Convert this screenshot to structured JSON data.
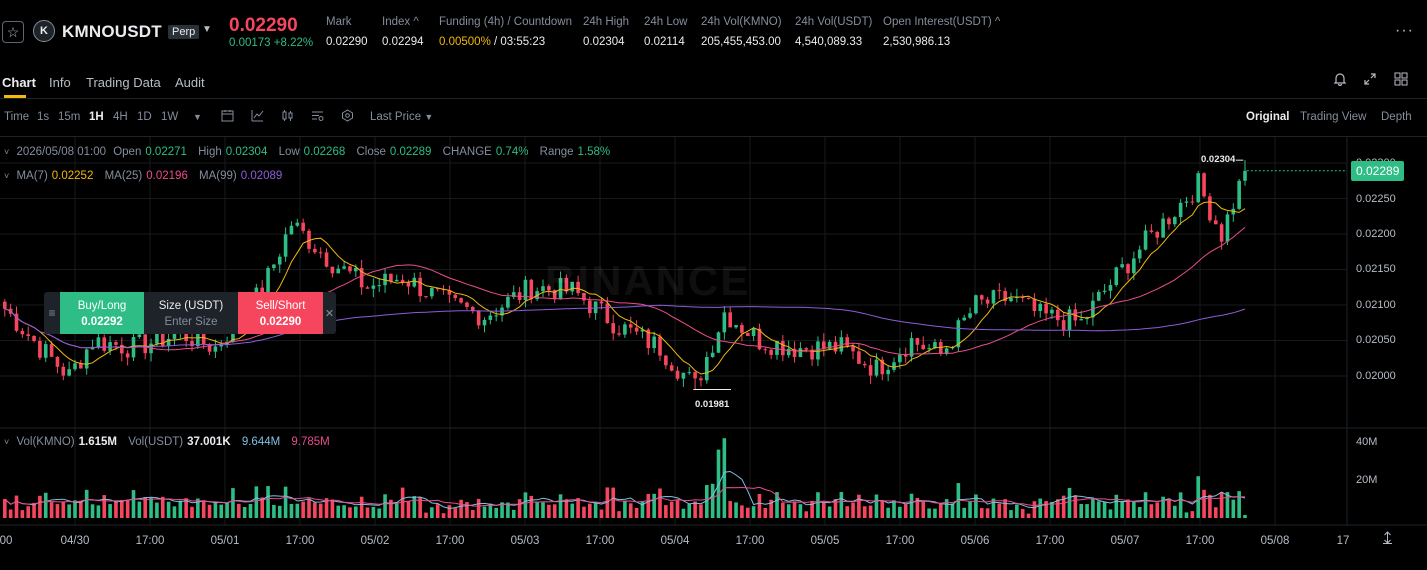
{
  "header": {
    "symbol": "KMNOUSDT",
    "contract_type": "Perp",
    "last_price": "0.02290",
    "change_abs": "0.00173",
    "change_pct": "+8.22%",
    "stats": [
      {
        "label": "Mark",
        "value": "0.02290"
      },
      {
        "label": "Index ^",
        "value": "0.02294"
      },
      {
        "label": "Funding (4h) / Countdown",
        "value": "0.00500%",
        "value2": " / 03:55:23"
      },
      {
        "label": "24h High",
        "value": "0.02304"
      },
      {
        "label": "24h Low",
        "value": "0.02114"
      },
      {
        "label": "24h Vol(KMNO)",
        "value": "205,455,453.00"
      },
      {
        "label": "24h Vol(USDT)",
        "value": "4,540,089.33"
      },
      {
        "label": "Open Interest(USDT) ^",
        "value": "2,530,986.13"
      }
    ],
    "coin_logo": "K"
  },
  "tabs": [
    "Chart",
    "Info",
    "Trading Data",
    "Audit"
  ],
  "toolbar": {
    "intervals": [
      "Time",
      "1s",
      "15m",
      "1H",
      "4H",
      "1D",
      "1W"
    ],
    "active_interval": "1H",
    "price_type": "Last Price",
    "views": [
      "Original",
      "Trading View",
      "Depth"
    ],
    "active_view": "Original"
  },
  "ohlc": {
    "date": "2026/05/08 01:00",
    "open_label": "Open",
    "open": "0.02271",
    "high_label": "High",
    "high": "0.02304",
    "low_label": "Low",
    "low": "0.02268",
    "close_label": "Close",
    "close": "0.02289",
    "change_label": "CHANGE",
    "change": "0.74%",
    "range_label": "Range",
    "range": "1.58%"
  },
  "ma": {
    "ma7_label": "MA(7)",
    "ma7": "0.02252",
    "ma25_label": "MA(25)",
    "ma25": "0.02196",
    "ma99_label": "MA(99)",
    "ma99": "0.02089"
  },
  "volume": {
    "label1": "Vol(KMNO)",
    "value1": "1.615M",
    "label2": "Vol(USDT)",
    "value2": "37.001K",
    "ma1": "9.644M",
    "ma2": "9.785M"
  },
  "order_widget": {
    "buy_label": "Buy/Long",
    "buy_price": "0.02292",
    "size_label": "Size (USDT)",
    "size_placeholder": "Enter Size",
    "sell_label": "Sell/Short",
    "sell_price": "0.02290"
  },
  "watermark": "BINANCE",
  "colors": {
    "up": "#2ebd85",
    "down": "#f6465d",
    "ma7": "#f0b90b",
    "ma25": "#e94d8d",
    "ma99": "#8e5cd9",
    "vol_ma1": "#7ec1e3",
    "vol_ma2": "#e94d8d"
  },
  "chart_data": {
    "type": "candlestick",
    "interval": "1H",
    "price_axis": {
      "ticks": [
        "0.02300",
        "0.02250",
        "0.02200",
        "0.02150",
        "0.02100",
        "0.02050",
        "0.02000"
      ],
      "range": [
        0.0195,
        0.0232
      ]
    },
    "time_axis": [
      "00",
      "04/30",
      "17:00",
      "05/01",
      "17:00",
      "05/02",
      "17:00",
      "05/03",
      "17:00",
      "05/04",
      "17:00",
      "05/05",
      "17:00",
      "05/06",
      "17:00",
      "05/07",
      "17:00",
      "05/08",
      "17"
    ],
    "current_price": "0.02289",
    "high_marker": "0.02304",
    "low_marker": "0.01981",
    "volume_axis": [
      "40M",
      "20M"
    ],
    "anchors": [
      [
        0.02095,
        0
      ],
      [
        0.0204,
        6
      ],
      [
        0.02,
        11
      ],
      [
        0.0205,
        15
      ],
      [
        0.0204,
        22
      ],
      [
        0.0206,
        30
      ],
      [
        0.0204,
        36
      ],
      [
        0.0212,
        44
      ],
      [
        0.02215,
        49
      ],
      [
        0.0216,
        56
      ],
      [
        0.02125,
        62
      ],
      [
        0.0214,
        68
      ],
      [
        0.021,
        76
      ],
      [
        0.02085,
        82
      ],
      [
        0.02125,
        90
      ],
      [
        0.0212,
        97
      ],
      [
        0.0207,
        105
      ],
      [
        0.0204,
        112
      ],
      [
        0.01985,
        118
      ],
      [
        0.0209,
        123
      ],
      [
        0.0205,
        129
      ],
      [
        0.0204,
        135
      ],
      [
        0.0204,
        143
      ],
      [
        0.0201,
        149
      ],
      [
        0.0205,
        155
      ],
      [
        0.0203,
        160
      ],
      [
        0.021,
        166
      ],
      [
        0.0211,
        172
      ],
      [
        0.02085,
        177
      ],
      [
        0.02075,
        184
      ],
      [
        0.0212,
        188
      ],
      [
        0.0217,
        193
      ],
      [
        0.02225,
        199
      ],
      [
        0.0227,
        204
      ],
      [
        0.022,
        208
      ],
      [
        0.02289,
        212
      ]
    ]
  }
}
